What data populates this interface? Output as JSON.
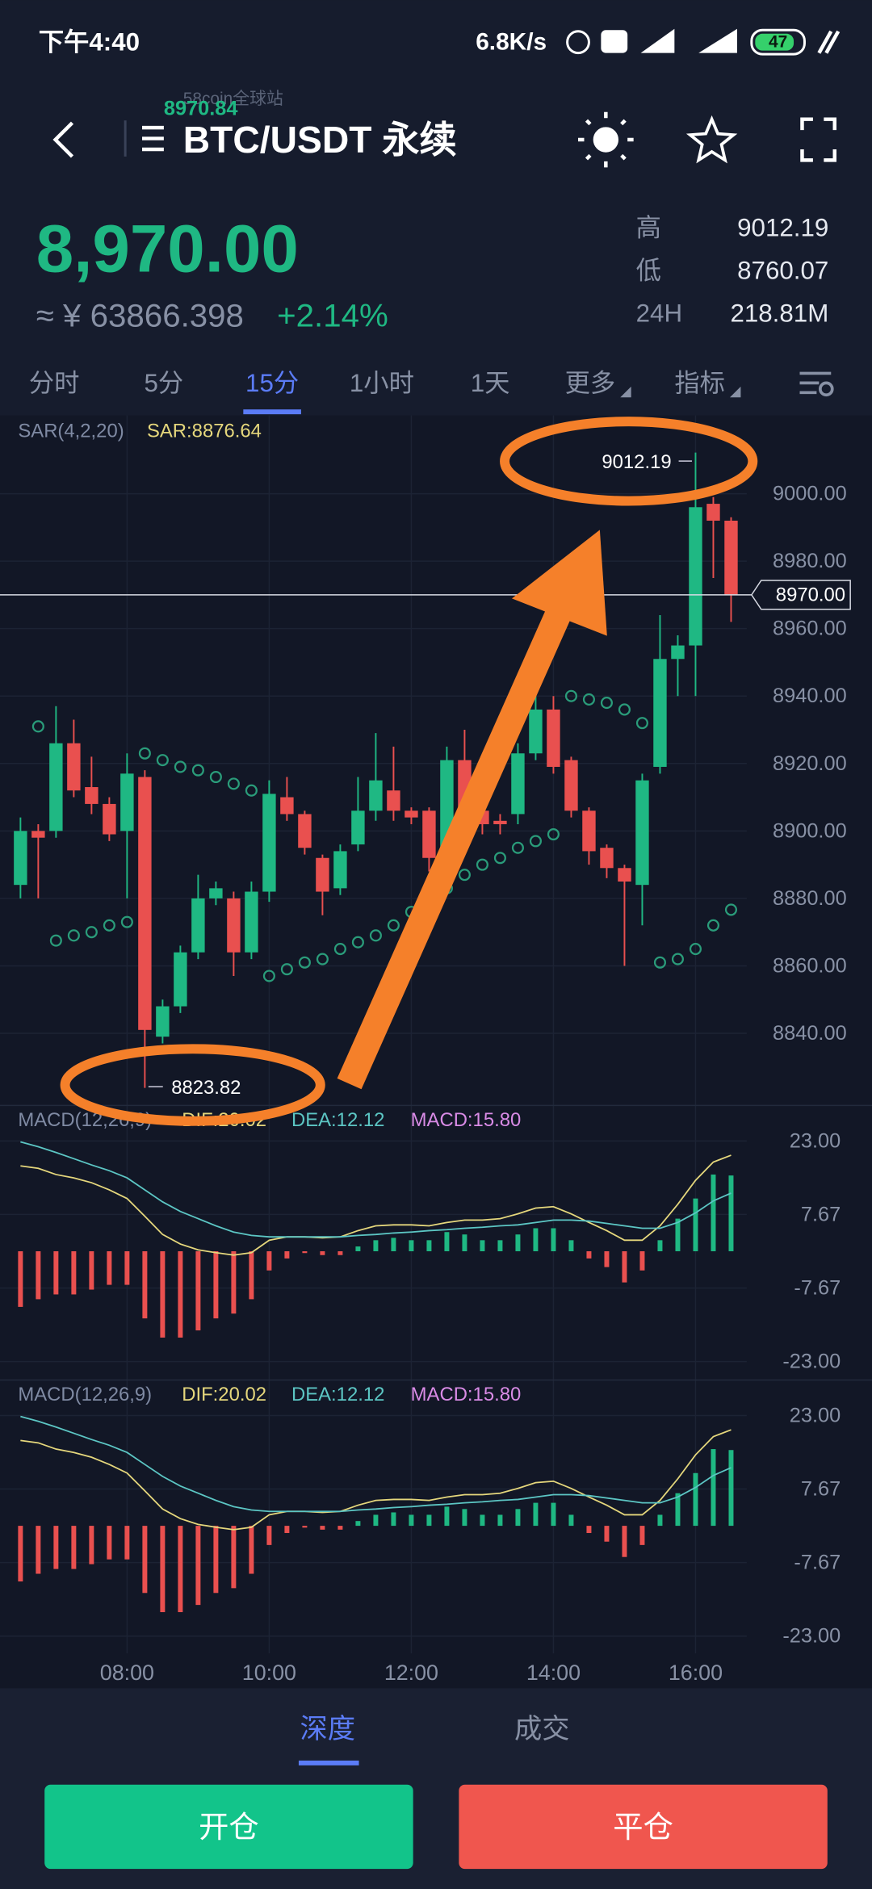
{
  "status_bar": {
    "time": "下午4:40",
    "speed": "6.8K/s",
    "battery": "47"
  },
  "header": {
    "title": "BTC/USDT 永续",
    "overlay_site": "58coin全球站",
    "overlay_price": "8970.84"
  },
  "ticker": {
    "price": "8,970.00",
    "cny": "≈ ¥ 63866.398",
    "change": "+2.14%",
    "stats": [
      {
        "label": "高",
        "value": "9012.19"
      },
      {
        "label": "低",
        "value": "8760.07"
      },
      {
        "label": "24H",
        "value": "218.81M"
      }
    ]
  },
  "tabs": {
    "items": [
      "分时",
      "5分",
      "15分",
      "1小时",
      "1天",
      "更多",
      "指标"
    ],
    "active": 2
  },
  "chart_data": [
    {
      "type": "candlestick",
      "indicator_label": "SAR(4,2,20)",
      "indicator_value_label": "SAR:8876.64",
      "up_color": "#1fb883",
      "down_color": "#e9504f",
      "sar_color": "#2a9c7a",
      "grid": true,
      "categories": [
        null,
        null,
        null,
        null,
        null,
        null,
        "08:00",
        null,
        null,
        null,
        null,
        null,
        null,
        null,
        "10:00",
        null,
        null,
        null,
        null,
        null,
        null,
        null,
        "12:00",
        null,
        null,
        null,
        null,
        null,
        null,
        null,
        "14:00",
        null,
        null,
        null,
        null,
        null,
        null,
        null,
        "16:00",
        null,
        null
      ],
      "open": [
        8884,
        8900,
        8900,
        8926,
        8913,
        8908,
        8900,
        8916,
        8839,
        8848,
        8864,
        8880,
        8880,
        8864,
        8882,
        8910,
        8905,
        8892,
        8883,
        8896,
        8906,
        8912,
        8906,
        8906,
        8892,
        8921,
        8906,
        8903,
        8905,
        8923,
        8936,
        8921,
        8906,
        8895,
        8889,
        8884,
        8919,
        8951,
        8955,
        8997,
        8992
      ],
      "high": [
        8904,
        8902,
        8937,
        8933,
        8922,
        8910,
        8923,
        8918,
        8850,
        8866,
        8887,
        8885,
        8882,
        8885,
        8915,
        8916,
        8906,
        8893,
        8896,
        8916,
        8929,
        8925,
        8907,
        8907,
        8925,
        8930,
        8908,
        8905,
        8926,
        8940,
        8940,
        8922,
        8907,
        8896,
        8890,
        8917,
        8964,
        8958,
        9012.19,
        8999,
        8993
      ],
      "low": [
        8880,
        8880,
        8898,
        8910,
        8905,
        8897,
        8880,
        8823.82,
        8837,
        8846,
        8862,
        8878,
        8857,
        8862,
        8879,
        8903,
        8893,
        8875,
        8881,
        8894,
        8903,
        8903,
        8902,
        8888,
        8890,
        8903,
        8899,
        8899,
        8902,
        8921,
        8917,
        8904,
        8890,
        8886,
        8860,
        8872,
        8917,
        8940,
        8940,
        8975,
        8962
      ],
      "close": [
        8900,
        8898,
        8926,
        8912,
        8908,
        8899,
        8917,
        8841,
        8848,
        8864,
        8880,
        8883,
        8864,
        8882,
        8911,
        8905,
        8895,
        8882,
        8894,
        8906,
        8915,
        8906,
        8904,
        8892,
        8921,
        8906,
        8902,
        8902,
        8923,
        8936,
        8919,
        8906,
        8894,
        8889,
        8885,
        8915,
        8951,
        8955,
        8996,
        8992,
        8970
      ],
      "sar": [
        null,
        8931,
        8867.5,
        8869,
        8870,
        8872,
        8873,
        8923,
        8921,
        8919,
        8918,
        8916,
        8914,
        8912,
        8857,
        8859,
        8861,
        8862,
        8865,
        8867,
        8869,
        8872,
        8876,
        8879,
        8883,
        8887,
        8890,
        8892,
        8895,
        8897,
        8899,
        8940,
        8939,
        8938,
        8936,
        8932,
        8861,
        8862,
        8865,
        8872,
        8876.64
      ],
      "ylim": [
        8818.6,
        9023.2
      ],
      "yticks": [
        {
          "value": 8840,
          "label": "8840.00"
        },
        {
          "value": 8860,
          "label": "8860.00"
        },
        {
          "value": 8880,
          "label": "8880.00"
        },
        {
          "value": 8900,
          "label": "8900.00"
        },
        {
          "value": 8920,
          "label": "8920.00"
        },
        {
          "value": 8940,
          "label": "8940.00"
        },
        {
          "value": 8960,
          "label": "8960.00"
        },
        {
          "value": 8980,
          "label": "8980.00"
        },
        {
          "value": 9000,
          "label": "9000.00"
        }
      ],
      "max_label": "9012.19",
      "min_label": "8823.82",
      "last_price": {
        "value": 8970,
        "label": "8970.00"
      }
    },
    {
      "type": "macd",
      "title": "MACD(12,26,9)",
      "grid": true,
      "series": [
        {
          "name": "DIF:20.02",
          "color": "#e5d77c",
          "values": [
            17.8,
            17.3,
            16,
            15.3,
            14.3,
            12.8,
            11,
            7.3,
            3.5,
            1.5,
            0.3,
            -0.3,
            -0.8,
            -0.3,
            2.3,
            3,
            3,
            2.8,
            3,
            4.3,
            5.3,
            5.5,
            5.5,
            5.3,
            6,
            6.5,
            6.5,
            6.8,
            7.8,
            9,
            9.3,
            7.8,
            6,
            4.3,
            2.3,
            2.3,
            5.3,
            9.8,
            14.8,
            18.6,
            20.02
          ]
        },
        {
          "name": "DEA:12.12",
          "color": "#5cc6c4",
          "values": [
            22.8,
            21.8,
            20.6,
            19.3,
            18,
            16.8,
            15.3,
            12.8,
            10.3,
            8.3,
            6.8,
            5.3,
            4,
            3.3,
            3,
            3,
            3,
            3,
            3,
            3.3,
            3.5,
            3.8,
            4,
            4.3,
            4.5,
            4.8,
            5,
            5.3,
            5.5,
            6,
            6.5,
            6.5,
            6.3,
            5.8,
            5.3,
            4.8,
            4.8,
            6,
            8,
            10.5,
            12.12
          ]
        },
        {
          "name": "MACD:15.80",
          "color": "#d98be6",
          "up_color": "#1fb883",
          "down_color": "#e9504f",
          "values": [
            -11.6,
            -10,
            -9,
            -9,
            -8,
            -7,
            -7,
            -14,
            -18,
            -18,
            -16.5,
            -14,
            -13,
            -10,
            -4,
            -1.5,
            -0.3,
            -0.8,
            -0.8,
            1,
            2.3,
            2.8,
            2.3,
            2.3,
            4,
            3.5,
            2.3,
            2.3,
            3.5,
            4.8,
            4.8,
            2.3,
            -1.5,
            -3.3,
            -6.5,
            -4,
            2.3,
            6.8,
            11,
            16,
            15.8
          ]
        }
      ],
      "ylim": [
        -26.6,
        30.4
      ],
      "yticks": [
        {
          "value": -23,
          "label": "-23.00"
        },
        {
          "value": -7.67,
          "label": "-7.67"
        },
        {
          "value": 7.67,
          "label": "7.67"
        },
        {
          "value": 23,
          "label": "23.00"
        }
      ]
    },
    {
      "type": "macd",
      "title": "MACD(12,26,9)",
      "grid": true,
      "series": [
        {
          "name": "DIF:20.02",
          "color": "#e5d77c",
          "values": [
            17.8,
            17.3,
            16,
            15.3,
            14.3,
            12.8,
            11,
            7.3,
            3.5,
            1.5,
            0.3,
            -0.3,
            -0.8,
            -0.3,
            2.3,
            3,
            3,
            2.8,
            3,
            4.3,
            5.3,
            5.5,
            5.5,
            5.3,
            6,
            6.5,
            6.5,
            6.8,
            7.8,
            9,
            9.3,
            7.8,
            6,
            4.3,
            2.3,
            2.3,
            5.3,
            9.8,
            14.8,
            18.6,
            20.02
          ]
        },
        {
          "name": "DEA:12.12",
          "color": "#5cc6c4",
          "values": [
            22.8,
            21.8,
            20.6,
            19.3,
            18,
            16.8,
            15.3,
            12.8,
            10.3,
            8.3,
            6.8,
            5.3,
            4,
            3.3,
            3,
            3,
            3,
            3,
            3,
            3.3,
            3.5,
            3.8,
            4,
            4.3,
            4.5,
            4.8,
            5,
            5.3,
            5.5,
            6,
            6.5,
            6.5,
            6.3,
            5.8,
            5.3,
            4.8,
            4.8,
            6,
            8,
            10.5,
            12.12
          ]
        },
        {
          "name": "MACD:15.80",
          "color": "#d98be6",
          "up_color": "#1fb883",
          "down_color": "#e9504f",
          "values": [
            -11.6,
            -10,
            -9,
            -9,
            -8,
            -7,
            -7,
            -14,
            -18,
            -18,
            -16.5,
            -14,
            -13,
            -10,
            -4,
            -1.5,
            -0.3,
            -0.8,
            -0.8,
            1,
            2.3,
            2.8,
            2.3,
            2.3,
            4,
            3.5,
            2.3,
            2.3,
            3.5,
            4.8,
            4.8,
            2.3,
            -1.5,
            -3.3,
            -6.5,
            -4,
            2.3,
            6.8,
            11,
            16,
            15.8
          ]
        }
      ],
      "ylim": [
        -26.6,
        30.4
      ],
      "yticks": [
        {
          "value": -23,
          "label": "-23.00"
        },
        {
          "value": -7.67,
          "label": "-7.67"
        },
        {
          "value": 7.67,
          "label": "7.67"
        },
        {
          "value": 23,
          "label": "23.00"
        }
      ]
    }
  ],
  "bottom": {
    "tabs": [
      "深度",
      "成交"
    ],
    "active": 0,
    "buttons": [
      "开仓",
      "平仓"
    ]
  }
}
